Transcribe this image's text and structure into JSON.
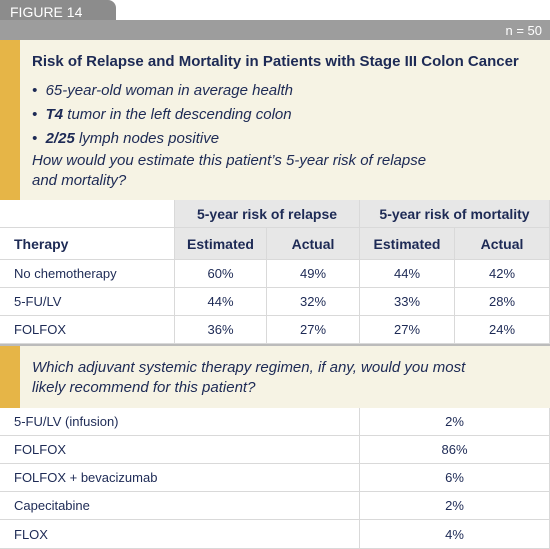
{
  "header": {
    "figure_label": "FIGURE 14",
    "n": "n = 50"
  },
  "case": {
    "title": "Risk of Relapse and Mortality in Patients with Stage III Colon Cancer",
    "bullets": [
      {
        "text": "65-year-old woman in average health"
      },
      {
        "bold": "T4",
        "text": "tumor in the left descending colon"
      },
      {
        "bold": "2/25",
        "text": "lymph nodes positive"
      }
    ],
    "question": "How would you estimate this patient’s 5-year risk of relapse and mortality?"
  },
  "risk_table": {
    "group_headers": [
      "5-year risk of relapse",
      "5-year risk of mortality"
    ],
    "columns": [
      "Therapy",
      "Estimated",
      "Actual",
      "Estimated",
      "Actual"
    ],
    "rows": [
      [
        "No chemotherapy",
        "60%",
        "49%",
        "44%",
        "42%"
      ],
      [
        "5-FU/LV",
        "44%",
        "32%",
        "33%",
        "28%"
      ],
      [
        "FOLFOX",
        "36%",
        "27%",
        "27%",
        "24%"
      ]
    ]
  },
  "regimen": {
    "question": "Which adjuvant systemic therapy regimen, if any, would you most likely recommend for this patient?",
    "rows": [
      [
        "5-FU/LV (infusion)",
        "2%"
      ],
      [
        "FOLFOX",
        "86%"
      ],
      [
        "FOLFOX + bevacizumab",
        "6%"
      ],
      [
        "Capecitabine",
        "2%"
      ],
      [
        "FLOX",
        "4%"
      ]
    ]
  }
}
